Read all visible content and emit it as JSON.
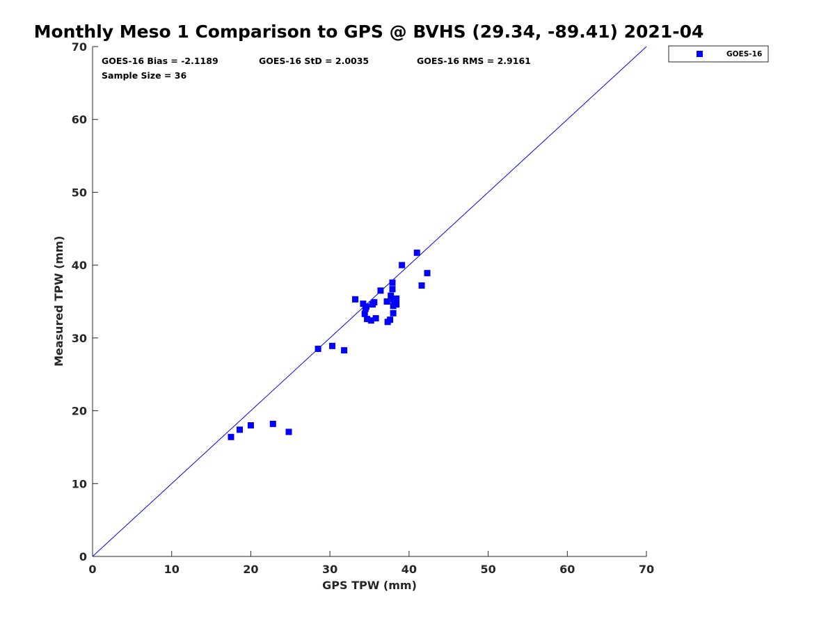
{
  "chart_data": {
    "type": "scatter",
    "title": "Monthly Meso 1 Comparison to GPS @ BVHS (29.34, -89.41) 2021-04",
    "xlabel": "GPS TPW (mm)",
    "ylabel": "Measured TPW (mm)",
    "xlim": [
      0,
      70
    ],
    "ylim": [
      0,
      70
    ],
    "xticks": [
      "0",
      "10",
      "20",
      "30",
      "40",
      "50",
      "60",
      "70"
    ],
    "yticks": [
      "0",
      "10",
      "20",
      "30",
      "40",
      "50",
      "60",
      "70"
    ],
    "grid": false,
    "legend_position": "outside top-right",
    "reference_line": {
      "name": "1:1 line",
      "x": [
        0,
        70
      ],
      "y": [
        0,
        70
      ],
      "color": "#0000ff"
    },
    "stats": {
      "bias": "GOES-16 Bias = -2.1189",
      "std": "GOES-16 StD = 2.0035",
      "rms": "GOES-16 RMS = 2.9161",
      "sample_size": "Sample Size = 36"
    },
    "series": [
      {
        "name": "GOES-16",
        "marker": "square",
        "color": "#0000ff",
        "points": [
          [
            17.5,
            16.4
          ],
          [
            18.6,
            17.4
          ],
          [
            20.0,
            18.0
          ],
          [
            22.8,
            18.2
          ],
          [
            24.8,
            17.1
          ],
          [
            28.5,
            28.5
          ],
          [
            30.3,
            28.9
          ],
          [
            31.8,
            28.3
          ],
          [
            33.2,
            35.3
          ],
          [
            34.2,
            34.7
          ],
          [
            34.4,
            33.3
          ],
          [
            34.5,
            34.0
          ],
          [
            34.6,
            34.3
          ],
          [
            34.7,
            32.6
          ],
          [
            35.2,
            32.4
          ],
          [
            35.4,
            34.6
          ],
          [
            35.6,
            34.9
          ],
          [
            35.8,
            32.7
          ],
          [
            36.4,
            36.5
          ],
          [
            37.2,
            35.0
          ],
          [
            37.3,
            32.2
          ],
          [
            37.6,
            32.5
          ],
          [
            37.7,
            35.8
          ],
          [
            37.9,
            37.6
          ],
          [
            37.9,
            36.7
          ],
          [
            38.0,
            35.3
          ],
          [
            38.0,
            34.4
          ],
          [
            38.0,
            33.4
          ],
          [
            38.3,
            34.8
          ],
          [
            38.4,
            35.4
          ],
          [
            38.4,
            34.6
          ],
          [
            39.1,
            40.0
          ],
          [
            41.0,
            41.7
          ],
          [
            41.6,
            37.2
          ],
          [
            42.3,
            38.9
          ],
          [
            38.2,
            35.0
          ]
        ]
      }
    ]
  }
}
